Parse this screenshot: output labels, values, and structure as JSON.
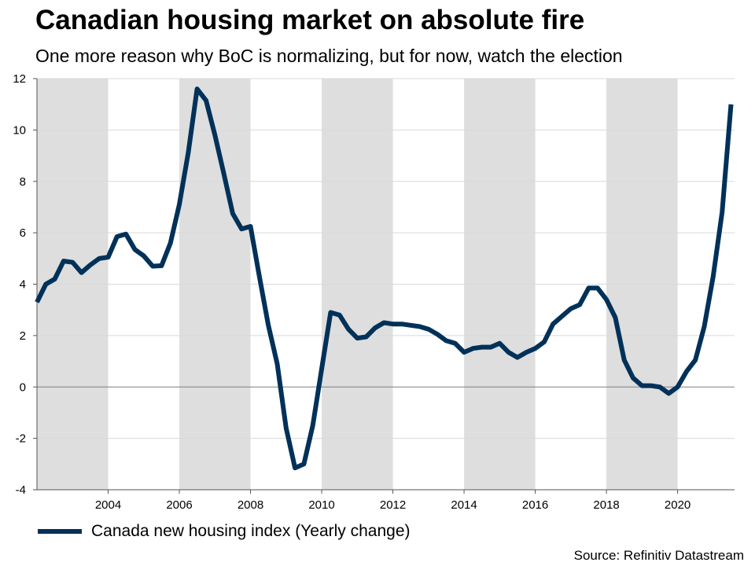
{
  "title": "Canadian housing market on absolute fire",
  "subtitle": "One more reason why BoC is normalizing, but for now, watch the election",
  "source": "Source: Refinitiv Datastream",
  "colors": {
    "line": "#003159",
    "shade": "#dedede",
    "grid": "#d9d9d9",
    "zero_line": "#7f7f7f"
  },
  "chart_data": {
    "type": "line",
    "title": "Canadian housing market on absolute fire",
    "xlabel": "",
    "ylabel": "",
    "xlim": [
      2002.0,
      2021.6
    ],
    "ylim": [
      -4,
      12
    ],
    "y_ticks": [
      -4,
      -2,
      0,
      2,
      4,
      6,
      8,
      10,
      12
    ],
    "x_ticks": [
      2004,
      2006,
      2008,
      2010,
      2012,
      2014,
      2016,
      2018,
      2020
    ],
    "shaded_periods": [
      [
        2002.0,
        2004.0
      ],
      [
        2006.0,
        2008.0
      ],
      [
        2010.0,
        2012.0
      ],
      [
        2014.0,
        2016.0
      ],
      [
        2018.0,
        2020.0
      ]
    ],
    "legend": "Canada new housing index (Yearly change)",
    "legend_position": "bottom-left",
    "series": [
      {
        "name": "Canada new housing index (Yearly change)",
        "x": [
          2002.0,
          2002.25,
          2002.5,
          2002.75,
          2003.0,
          2003.25,
          2003.5,
          2003.75,
          2004.0,
          2004.25,
          2004.5,
          2004.75,
          2005.0,
          2005.25,
          2005.5,
          2005.75,
          2006.0,
          2006.25,
          2006.5,
          2006.75,
          2007.0,
          2007.25,
          2007.5,
          2007.75,
          2008.0,
          2008.25,
          2008.5,
          2008.75,
          2009.0,
          2009.25,
          2009.5,
          2009.75,
          2010.0,
          2010.25,
          2010.5,
          2010.75,
          2011.0,
          2011.25,
          2011.5,
          2011.75,
          2012.0,
          2012.25,
          2012.5,
          2012.75,
          2013.0,
          2013.25,
          2013.5,
          2013.75,
          2014.0,
          2014.25,
          2014.5,
          2014.75,
          2015.0,
          2015.25,
          2015.5,
          2015.75,
          2016.0,
          2016.25,
          2016.5,
          2016.75,
          2017.0,
          2017.25,
          2017.5,
          2017.75,
          2018.0,
          2018.25,
          2018.5,
          2018.75,
          2019.0,
          2019.25,
          2019.5,
          2019.75,
          2020.0,
          2020.25,
          2020.5,
          2020.75,
          2021.0,
          2021.25,
          2021.5
        ],
        "values": [
          3.3,
          4.0,
          4.2,
          4.9,
          4.85,
          4.45,
          4.75,
          5.0,
          5.05,
          5.85,
          5.95,
          5.35,
          5.1,
          4.7,
          4.72,
          5.6,
          7.1,
          9.1,
          11.6,
          11.15,
          9.8,
          8.3,
          6.75,
          6.15,
          6.25,
          4.3,
          2.4,
          0.9,
          -1.6,
          -3.15,
          -3.0,
          -1.5,
          0.7,
          2.9,
          2.8,
          2.25,
          1.9,
          1.95,
          2.3,
          2.5,
          2.45,
          2.45,
          2.4,
          2.35,
          2.25,
          2.05,
          1.8,
          1.7,
          1.35,
          1.5,
          1.55,
          1.55,
          1.7,
          1.35,
          1.15,
          1.35,
          1.5,
          1.75,
          2.45,
          2.75,
          3.05,
          3.2,
          3.85,
          3.85,
          3.4,
          2.7,
          1.05,
          0.35,
          0.05,
          0.05,
          0.0,
          -0.25,
          0.0,
          0.6,
          1.05,
          2.35,
          4.3,
          6.8,
          11.0
        ]
      }
    ]
  }
}
